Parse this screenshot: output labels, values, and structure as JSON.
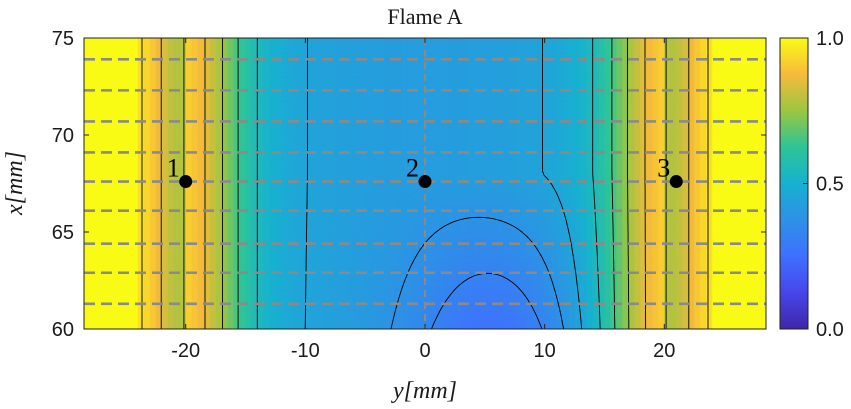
{
  "chart_data": {
    "type": "heatmap",
    "title": "Flame A",
    "xlabel": "y[mm]",
    "ylabel": "x[mm]",
    "xlim": [
      -28.5,
      28.5
    ],
    "ylim": [
      60,
      75
    ],
    "xticks": [
      -20,
      -10,
      0,
      10,
      20
    ],
    "xtick_labels": [
      "-20",
      "-10",
      "0",
      "10",
      "20"
    ],
    "yticks": [
      60,
      65,
      70,
      75
    ],
    "ytick_labels": [
      "60",
      "65",
      "70",
      "75"
    ],
    "colorbar": {
      "range": [
        0,
        1
      ],
      "ticks": [
        0,
        0.5,
        1
      ],
      "tick_labels": [
        "0.0",
        "0.5",
        "1.0"
      ],
      "colormap": "parula"
    },
    "profile_lines_x": [
      61.3,
      62.9,
      64.4,
      66.1,
      67.6,
      69.1,
      70.7,
      72.3,
      73.9
    ],
    "centerline_y": 0,
    "points": [
      {
        "label": "1",
        "y": -20,
        "x": 67.6
      },
      {
        "label": "2",
        "y": 0,
        "x": 67.6
      },
      {
        "label": "3",
        "y": 21,
        "x": 67.6
      }
    ],
    "contour_levels": [
      0.25,
      0.32,
      0.38,
      0.45,
      0.55,
      0.65,
      0.75,
      0.85,
      0.95
    ]
  },
  "colors": {
    "guide_lines": "#8a8a8a",
    "contour_lines": "#000000",
    "points": "#000000"
  }
}
